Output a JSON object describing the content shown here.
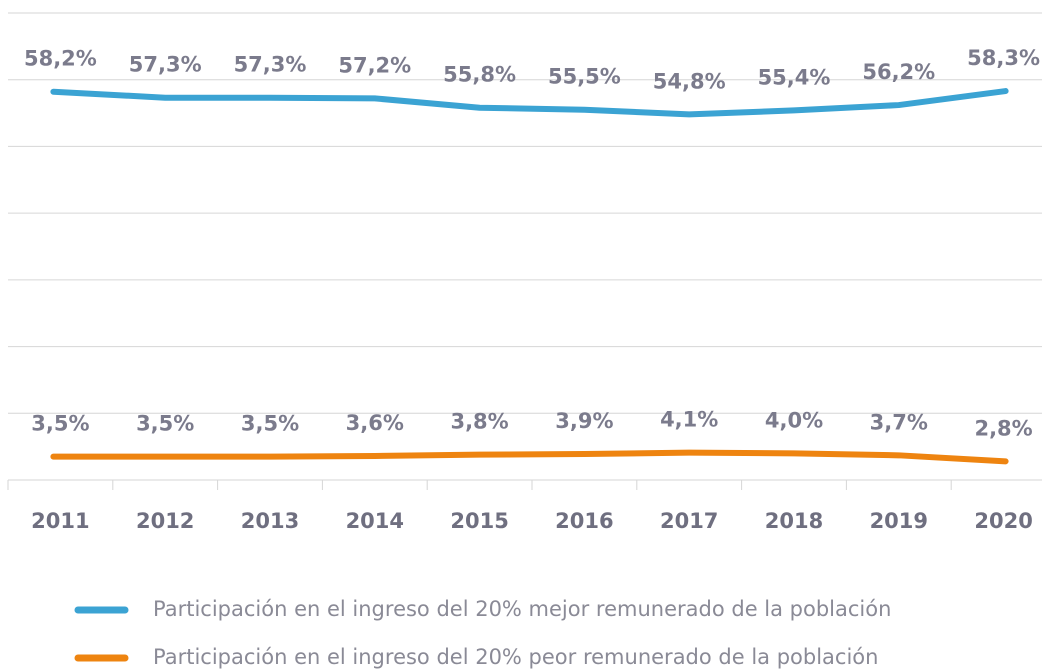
{
  "chart_data": {
    "type": "line",
    "categories": [
      "2011",
      "2012",
      "2013",
      "2014",
      "2015",
      "2016",
      "2017",
      "2018",
      "2019",
      "2020"
    ],
    "series": [
      {
        "name": "Participación en el ingreso del 20% mejor remunerado de la población",
        "color": "#3ba3d3",
        "values": [
          58.2,
          57.3,
          57.3,
          57.2,
          55.8,
          55.5,
          54.8,
          55.4,
          56.2,
          58.3
        ],
        "value_labels": [
          "58,2%",
          "57,3%",
          "57,3%",
          "57,2%",
          "55,8%",
          "55,5%",
          "54,8%",
          "55,4%",
          "56,2%",
          "58,3%"
        ]
      },
      {
        "name": "Participación en el ingreso del 20% peor remunerado de la población",
        "color": "#ee8410",
        "values": [
          3.5,
          3.5,
          3.5,
          3.6,
          3.8,
          3.9,
          4.1,
          4.0,
          3.7,
          2.8
        ],
        "value_labels": [
          "3,5%",
          "3,5%",
          "3,5%",
          "3,6%",
          "3,8%",
          "3,9%",
          "4,1%",
          "4,0%",
          "3,7%",
          "2,8%"
        ]
      }
    ],
    "ylim": [
      0,
      70
    ],
    "yticks": [
      0,
      10,
      20,
      30,
      40,
      50,
      60,
      70
    ],
    "grid": true,
    "legend": "bottom"
  }
}
